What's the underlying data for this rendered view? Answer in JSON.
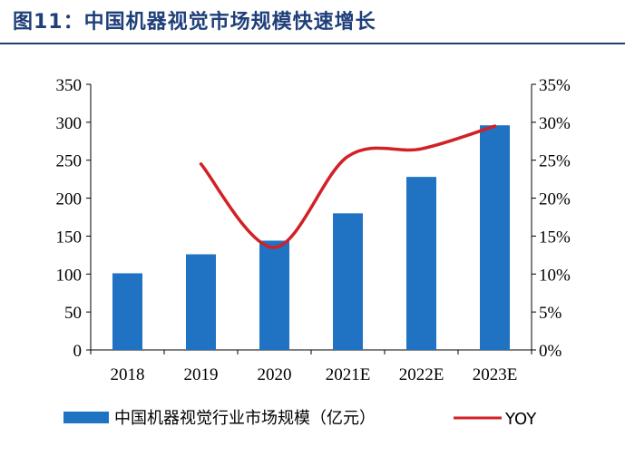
{
  "title": "图11：中国机器视觉市场规模快速增长",
  "chart_data": {
    "type": "bar+line",
    "categories": [
      "2018",
      "2019",
      "2020",
      "2021E",
      "2022E",
      "2023E"
    ],
    "series": [
      {
        "name": "中国机器视觉行业市场规模（亿元）",
        "type": "bar",
        "axis": "left",
        "values": [
          101,
          126,
          144,
          180,
          228,
          296
        ]
      },
      {
        "name": "YOY",
        "type": "line",
        "axis": "right",
        "values": [
          null,
          24.5,
          13.5,
          25.5,
          26.5,
          29.5
        ]
      }
    ],
    "y_left": {
      "min": 0,
      "max": 350,
      "step": 50,
      "tick_labels": [
        "0",
        "50",
        "100",
        "150",
        "200",
        "250",
        "300",
        "350"
      ]
    },
    "y_right": {
      "min": 0,
      "max": 35,
      "step": 5,
      "tick_labels": [
        "0%",
        "5%",
        "10%",
        "15%",
        "20%",
        "25%",
        "30%",
        "35%"
      ]
    },
    "legend": {
      "position": "bottom",
      "bar_label": "中国机器视觉行业市场规模（亿元）",
      "line_label": "YOY"
    },
    "colors": {
      "bar": "#1f73c2",
      "line": "#d22027",
      "title": "#1f3f7a",
      "axis": "#000000"
    },
    "grid": false
  }
}
